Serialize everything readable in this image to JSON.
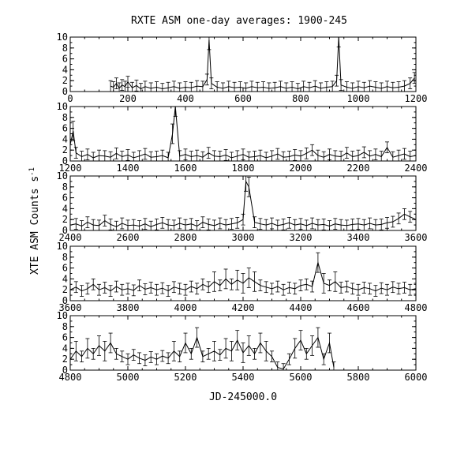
{
  "figure": {
    "title": "RXTE ASM one-day averages: 1900-245",
    "xlabel": "JD-245000.0",
    "ylabel": "XTE ASM Counts s",
    "ylabel_exponent": "-1"
  },
  "style": {
    "line_color": "#000000",
    "background": "#ffffff"
  },
  "chart_data": [
    {
      "type": "line",
      "xlim": [
        0,
        1200
      ],
      "ylim": [
        0,
        10
      ],
      "xticks": [
        0,
        200,
        400,
        600,
        800,
        1000,
        1200
      ],
      "yticks": [
        0,
        2,
        4,
        6,
        8,
        10
      ],
      "series": [
        {
          "x": [
            140,
            150,
            160,
            170,
            180,
            190,
            200,
            215,
            230,
            245,
            260,
            280,
            300,
            320,
            340,
            360,
            380,
            400,
            420,
            440,
            460,
            475,
            482,
            490,
            510,
            530,
            550,
            570,
            590,
            610,
            630,
            650,
            670,
            690,
            710,
            730,
            750,
            770,
            790,
            810,
            830,
            850,
            870,
            890,
            910,
            925,
            932,
            940,
            960,
            980,
            1000,
            1020,
            1040,
            1060,
            1080,
            1100,
            1120,
            1140,
            1160,
            1180,
            1195
          ],
          "y": [
            1.0,
            0.8,
            1.5,
            0.6,
            1.2,
            0.9,
            1.8,
            0.7,
            1.1,
            0.5,
            0.9,
            0.6,
            0.8,
            0.5,
            0.7,
            0.9,
            0.6,
            0.8,
            0.7,
            1.0,
            0.9,
            2.2,
            9.5,
            1.5,
            0.8,
            0.6,
            0.9,
            0.7,
            0.8,
            0.6,
            0.9,
            0.7,
            0.8,
            0.6,
            0.7,
            0.9,
            0.6,
            0.8,
            0.5,
            0.9,
            0.7,
            1.0,
            0.6,
            0.8,
            0.9,
            2.0,
            10.0,
            1.2,
            0.8,
            0.6,
            0.9,
            0.7,
            1.0,
            0.8,
            0.6,
            0.9,
            0.7,
            0.8,
            1.0,
            1.5,
            2.5
          ]
        }
      ]
    },
    {
      "type": "line",
      "xlim": [
        1200,
        2400
      ],
      "ylim": [
        0,
        10
      ],
      "xticks": [
        1200,
        1400,
        1600,
        1800,
        2000,
        2200,
        2400
      ],
      "yticks": [
        0,
        2,
        4,
        6,
        8,
        10
      ],
      "series": [
        {
          "x": [
            1200,
            1210,
            1220,
            1240,
            1260,
            1280,
            1300,
            1320,
            1340,
            1360,
            1380,
            1400,
            1420,
            1440,
            1460,
            1480,
            1500,
            1520,
            1540,
            1555,
            1565,
            1580,
            1600,
            1620,
            1640,
            1660,
            1680,
            1700,
            1720,
            1740,
            1760,
            1780,
            1800,
            1820,
            1840,
            1860,
            1880,
            1900,
            1920,
            1940,
            1960,
            1980,
            2000,
            2020,
            2040,
            2060,
            2080,
            2100,
            2120,
            2140,
            2160,
            2180,
            2200,
            2220,
            2240,
            2260,
            2280,
            2300,
            2320,
            2340,
            2360,
            2380,
            2400
          ],
          "y": [
            3.0,
            5.5,
            1.5,
            0.8,
            1.2,
            0.6,
            1.0,
            0.9,
            0.7,
            1.4,
            0.8,
            1.1,
            0.6,
            0.9,
            1.3,
            0.7,
            0.8,
            1.0,
            0.6,
            5.0,
            10.0,
            0.9,
            1.2,
            0.8,
            1.0,
            0.7,
            1.5,
            0.9,
            0.8,
            1.1,
            0.6,
            0.9,
            1.2,
            0.7,
            0.8,
            1.0,
            0.6,
            0.9,
            1.3,
            0.7,
            0.8,
            1.1,
            0.9,
            1.4,
            2.0,
            1.0,
            0.7,
            1.2,
            0.9,
            0.8,
            1.5,
            0.8,
            1.0,
            1.6,
            0.9,
            1.2,
            0.8,
            2.5,
            0.7,
            1.0,
            1.3,
            0.8,
            1.0
          ]
        }
      ]
    },
    {
      "type": "line",
      "xlim": [
        2400,
        3600
      ],
      "ylim": [
        0,
        10
      ],
      "xticks": [
        2400,
        2600,
        2800,
        3000,
        3200,
        3400,
        3600
      ],
      "yticks": [
        0,
        2,
        4,
        6,
        8,
        10
      ],
      "series": [
        {
          "x": [
            2400,
            2420,
            2440,
            2460,
            2480,
            2500,
            2520,
            2540,
            2560,
            2580,
            2600,
            2620,
            2640,
            2660,
            2680,
            2700,
            2720,
            2740,
            2760,
            2780,
            2800,
            2820,
            2840,
            2860,
            2880,
            2900,
            2920,
            2940,
            2960,
            2980,
            3000,
            3010,
            3020,
            3040,
            3060,
            3080,
            3100,
            3120,
            3140,
            3160,
            3180,
            3200,
            3220,
            3240,
            3260,
            3280,
            3300,
            3320,
            3340,
            3360,
            3380,
            3400,
            3420,
            3440,
            3460,
            3480,
            3500,
            3520,
            3540,
            3560,
            3580,
            3600
          ],
          "y": [
            1.0,
            1.2,
            0.8,
            1.5,
            1.0,
            0.9,
            1.8,
            1.1,
            0.7,
            1.3,
            0.9,
            1.0,
            0.8,
            1.2,
            0.7,
            1.1,
            1.4,
            1.0,
            0.9,
            1.3,
            1.0,
            1.2,
            0.8,
            1.5,
            1.1,
            0.9,
            1.3,
            1.0,
            1.2,
            1.4,
            2.0,
            9.0,
            8.0,
            1.5,
            1.2,
            1.0,
            1.3,
            0.9,
            1.1,
            1.4,
            1.0,
            1.2,
            0.9,
            1.3,
            1.0,
            1.1,
            0.8,
            1.2,
            1.0,
            0.9,
            1.1,
            1.2,
            1.0,
            1.3,
            1.0,
            1.1,
            1.4,
            1.6,
            2.2,
            3.0,
            2.5,
            2.0
          ]
        }
      ]
    },
    {
      "type": "line",
      "xlim": [
        3600,
        4800
      ],
      "ylim": [
        0,
        10
      ],
      "xticks": [
        3600,
        3800,
        4000,
        4200,
        4400,
        4600,
        4800
      ],
      "yticks": [
        0,
        2,
        4,
        6,
        8,
        10
      ],
      "series": [
        {
          "x": [
            3600,
            3620,
            3640,
            3660,
            3680,
            3700,
            3720,
            3740,
            3760,
            3780,
            3800,
            3820,
            3840,
            3860,
            3880,
            3900,
            3920,
            3940,
            3960,
            3980,
            4000,
            4020,
            4040,
            4060,
            4080,
            4100,
            4120,
            4140,
            4160,
            4180,
            4200,
            4220,
            4240,
            4260,
            4280,
            4300,
            4320,
            4340,
            4360,
            4380,
            4400,
            4420,
            4440,
            4460,
            4480,
            4500,
            4520,
            4540,
            4560,
            4580,
            4600,
            4620,
            4640,
            4660,
            4680,
            4700,
            4720,
            4740,
            4760,
            4780,
            4800
          ],
          "y": [
            2.0,
            2.5,
            1.8,
            2.2,
            3.0,
            2.0,
            2.4,
            1.8,
            2.6,
            2.0,
            2.2,
            1.9,
            2.8,
            2.1,
            2.4,
            2.0,
            2.3,
            1.8,
            2.5,
            2.2,
            2.0,
            2.6,
            2.2,
            3.0,
            2.5,
            3.5,
            2.8,
            4.0,
            3.0,
            3.8,
            3.2,
            4.2,
            3.5,
            2.8,
            2.5,
            2.2,
            2.6,
            2.0,
            2.4,
            2.2,
            2.8,
            3.0,
            2.6,
            7.0,
            3.2,
            2.8,
            3.5,
            2.4,
            2.6,
            2.2,
            2.0,
            2.4,
            2.2,
            1.8,
            2.3,
            2.0,
            2.5,
            2.2,
            2.4,
            2.0,
            2.2
          ]
        }
      ]
    },
    {
      "type": "line",
      "xlim": [
        4800,
        6000
      ],
      "ylim": [
        0,
        10
      ],
      "xticks": [
        4800,
        5000,
        5200,
        5400,
        5600,
        5800,
        6000
      ],
      "yticks": [
        0,
        2,
        4,
        6,
        8,
        10
      ],
      "series": [
        {
          "x": [
            4800,
            4820,
            4840,
            4860,
            4880,
            4900,
            4920,
            4940,
            4960,
            4980,
            5000,
            5020,
            5040,
            5060,
            5080,
            5100,
            5120,
            5140,
            5160,
            5180,
            5200,
            5220,
            5240,
            5260,
            5280,
            5300,
            5320,
            5340,
            5360,
            5380,
            5400,
            5420,
            5440,
            5460,
            5480,
            5500,
            5520,
            5540,
            5560,
            5580,
            5600,
            5620,
            5640,
            5660,
            5680,
            5700,
            5715
          ],
          "y": [
            2.0,
            3.5,
            2.5,
            4.0,
            3.0,
            4.5,
            3.5,
            5.0,
            3.0,
            2.5,
            2.0,
            2.8,
            2.2,
            1.8,
            2.4,
            2.0,
            2.6,
            2.2,
            3.5,
            2.5,
            5.0,
            3.0,
            6.0,
            2.5,
            3.0,
            3.5,
            2.8,
            4.0,
            3.5,
            5.5,
            3.2,
            4.5,
            3.0,
            5.0,
            3.5,
            2.5,
            0.5,
            0.2,
            2.0,
            4.0,
            5.5,
            3.0,
            4.5,
            6.0,
            2.0,
            5.0,
            0.5
          ]
        }
      ]
    }
  ]
}
